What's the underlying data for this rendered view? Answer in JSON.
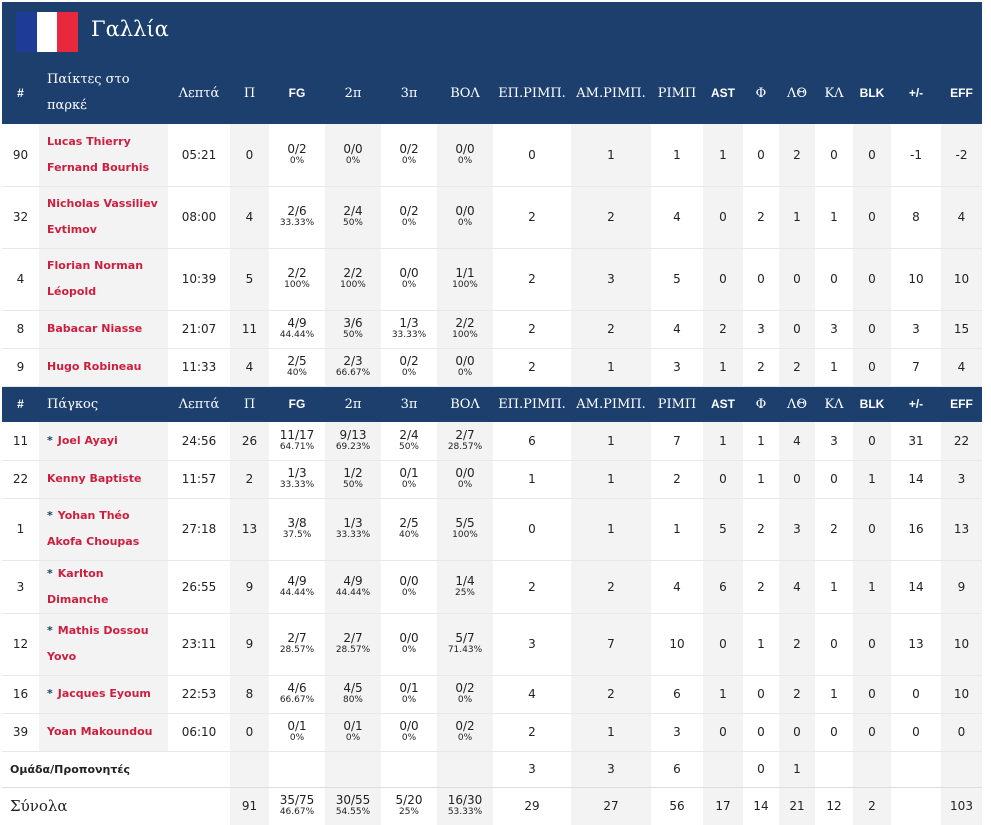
{
  "title": "Γαλλία",
  "flag_colors": [
    "#1e3c97",
    "#ffffff",
    "#e8283c"
  ],
  "starters_header": {
    "num": "#",
    "name": "Παίκτες στο παρκέ",
    "min": "Λεπτά",
    "pts": "Π",
    "fg": "FG",
    "p2": "2π",
    "p3": "3π",
    "ft": "ΒΟΛ",
    "oreb": "ΕΠ.ΡΙΜΠ.",
    "dreb": "ΑΜ.ΡΙΜΠ.",
    "reb": "ΡΙΜΠ",
    "ast": "AST",
    "fouls": "Φ",
    "to": "ΛΘ",
    "stl": "ΚΛ",
    "blk": "BLK",
    "pm": "+/-",
    "eff": "EFF"
  },
  "bench_header": {
    "num": "#",
    "name": "Πάγκος",
    "min": "Λεπτά",
    "pts": "Π",
    "fg": "FG",
    "p2": "2π",
    "p3": "3π",
    "ft": "ΒΟΛ",
    "oreb": "ΕΠ.ΡΙΜΠ.",
    "dreb": "ΑΜ.ΡΙΜΠ.",
    "reb": "ΡΙΜΠ",
    "ast": "AST",
    "fouls": "Φ",
    "to": "ΛΘ",
    "stl": "ΚΛ",
    "blk": "BLK",
    "pm": "+/-",
    "eff": "EFF"
  },
  "starters": [
    {
      "num": "90",
      "star": "",
      "name": "Lucas Thierry Fernand Bourhis",
      "min": "05:21",
      "pts": "0",
      "fg": "0/2",
      "fg_pct": "0%",
      "p2": "0/0",
      "p2_pct": "0%",
      "p3": "0/2",
      "p3_pct": "0%",
      "ft": "0/0",
      "ft_pct": "0%",
      "oreb": "0",
      "dreb": "1",
      "reb": "1",
      "ast": "1",
      "fouls": "0",
      "to": "2",
      "stl": "0",
      "blk": "0",
      "pm": "-1",
      "eff": "-2"
    },
    {
      "num": "32",
      "star": "",
      "name": "Nicholas Vassiliev Evtimov",
      "min": "08:00",
      "pts": "4",
      "fg": "2/6",
      "fg_pct": "33.33%",
      "p2": "2/4",
      "p2_pct": "50%",
      "p3": "0/2",
      "p3_pct": "0%",
      "ft": "0/0",
      "ft_pct": "0%",
      "oreb": "2",
      "dreb": "2",
      "reb": "4",
      "ast": "0",
      "fouls": "2",
      "to": "1",
      "stl": "1",
      "blk": "0",
      "pm": "8",
      "eff": "4"
    },
    {
      "num": "4",
      "star": "",
      "name": "Florian Norman Léopold",
      "min": "10:39",
      "pts": "5",
      "fg": "2/2",
      "fg_pct": "100%",
      "p2": "2/2",
      "p2_pct": "100%",
      "p3": "0/0",
      "p3_pct": "0%",
      "ft": "1/1",
      "ft_pct": "100%",
      "oreb": "2",
      "dreb": "3",
      "reb": "5",
      "ast": "0",
      "fouls": "0",
      "to": "0",
      "stl": "0",
      "blk": "0",
      "pm": "10",
      "eff": "10"
    },
    {
      "num": "8",
      "star": "",
      "name": "Babacar Niasse",
      "min": "21:07",
      "pts": "11",
      "fg": "4/9",
      "fg_pct": "44.44%",
      "p2": "3/6",
      "p2_pct": "50%",
      "p3": "1/3",
      "p3_pct": "33.33%",
      "ft": "2/2",
      "ft_pct": "100%",
      "oreb": "2",
      "dreb": "2",
      "reb": "4",
      "ast": "2",
      "fouls": "3",
      "to": "0",
      "stl": "3",
      "blk": "0",
      "pm": "3",
      "eff": "15"
    },
    {
      "num": "9",
      "star": "",
      "name": "Hugo Robineau",
      "min": "11:33",
      "pts": "4",
      "fg": "2/5",
      "fg_pct": "40%",
      "p2": "2/3",
      "p2_pct": "66.67%",
      "p3": "0/2",
      "p3_pct": "0%",
      "ft": "0/0",
      "ft_pct": "0%",
      "oreb": "2",
      "dreb": "1",
      "reb": "3",
      "ast": "1",
      "fouls": "2",
      "to": "2",
      "stl": "1",
      "blk": "0",
      "pm": "7",
      "eff": "4"
    }
  ],
  "bench": [
    {
      "num": "11",
      "star": "*",
      "name": "Joel Ayayi",
      "min": "24:56",
      "pts": "26",
      "fg": "11/17",
      "fg_pct": "64.71%",
      "p2": "9/13",
      "p2_pct": "69.23%",
      "p3": "2/4",
      "p3_pct": "50%",
      "ft": "2/7",
      "ft_pct": "28.57%",
      "oreb": "6",
      "dreb": "1",
      "reb": "7",
      "ast": "1",
      "fouls": "1",
      "to": "4",
      "stl": "3",
      "blk": "0",
      "pm": "31",
      "eff": "22"
    },
    {
      "num": "22",
      "star": "",
      "name": "Kenny Baptiste",
      "min": "11:57",
      "pts": "2",
      "fg": "1/3",
      "fg_pct": "33.33%",
      "p2": "1/2",
      "p2_pct": "50%",
      "p3": "0/1",
      "p3_pct": "0%",
      "ft": "0/0",
      "ft_pct": "0%",
      "oreb": "1",
      "dreb": "1",
      "reb": "2",
      "ast": "0",
      "fouls": "1",
      "to": "0",
      "stl": "0",
      "blk": "1",
      "pm": "14",
      "eff": "3"
    },
    {
      "num": "1",
      "star": "*",
      "name": "Yohan Théo Akofa Choupas",
      "min": "27:18",
      "pts": "13",
      "fg": "3/8",
      "fg_pct": "37.5%",
      "p2": "1/3",
      "p2_pct": "33.33%",
      "p3": "2/5",
      "p3_pct": "40%",
      "ft": "5/5",
      "ft_pct": "100%",
      "oreb": "0",
      "dreb": "1",
      "reb": "1",
      "ast": "5",
      "fouls": "2",
      "to": "3",
      "stl": "2",
      "blk": "0",
      "pm": "16",
      "eff": "13"
    },
    {
      "num": "3",
      "star": "*",
      "name": "Karlton Dimanche",
      "min": "26:55",
      "pts": "9",
      "fg": "4/9",
      "fg_pct": "44.44%",
      "p2": "4/9",
      "p2_pct": "44.44%",
      "p3": "0/0",
      "p3_pct": "0%",
      "ft": "1/4",
      "ft_pct": "25%",
      "oreb": "2",
      "dreb": "2",
      "reb": "4",
      "ast": "6",
      "fouls": "2",
      "to": "4",
      "stl": "1",
      "blk": "1",
      "pm": "14",
      "eff": "9"
    },
    {
      "num": "12",
      "star": "*",
      "name": "Mathis Dossou Yovo",
      "min": "23:11",
      "pts": "9",
      "fg": "2/7",
      "fg_pct": "28.57%",
      "p2": "2/7",
      "p2_pct": "28.57%",
      "p3": "0/0",
      "p3_pct": "0%",
      "ft": "5/7",
      "ft_pct": "71.43%",
      "oreb": "3",
      "dreb": "7",
      "reb": "10",
      "ast": "0",
      "fouls": "1",
      "to": "2",
      "stl": "0",
      "blk": "0",
      "pm": "13",
      "eff": "10"
    },
    {
      "num": "16",
      "star": "*",
      "name": "Jacques Eyoum",
      "min": "22:53",
      "pts": "8",
      "fg": "4/6",
      "fg_pct": "66.67%",
      "p2": "4/5",
      "p2_pct": "80%",
      "p3": "0/1",
      "p3_pct": "0%",
      "ft": "0/2",
      "ft_pct": "0%",
      "oreb": "4",
      "dreb": "2",
      "reb": "6",
      "ast": "1",
      "fouls": "0",
      "to": "2",
      "stl": "1",
      "blk": "0",
      "pm": "0",
      "eff": "10"
    },
    {
      "num": "39",
      "star": "",
      "name": "Yoan Makoundou",
      "min": "06:10",
      "pts": "0",
      "fg": "0/1",
      "fg_pct": "0%",
      "p2": "0/1",
      "p2_pct": "0%",
      "p3": "0/0",
      "p3_pct": "0%",
      "ft": "0/2",
      "ft_pct": "0%",
      "oreb": "2",
      "dreb": "1",
      "reb": "3",
      "ast": "0",
      "fouls": "0",
      "to": "0",
      "stl": "0",
      "blk": "0",
      "pm": "0",
      "eff": "0"
    }
  ],
  "team_row": {
    "label": "Ομάδα/Προπονητές",
    "oreb": "3",
    "dreb": "3",
    "reb": "6",
    "fouls": "0",
    "to": "1"
  },
  "totals": {
    "label": "Σύνολα",
    "pts": "91",
    "fg": "35/75",
    "fg_pct": "46.67%",
    "p2": "30/55",
    "p2_pct": "54.55%",
    "p3": "5/20",
    "p3_pct": "25%",
    "ft": "16/30",
    "ft_pct": "53.33%",
    "oreb": "29",
    "dreb": "27",
    "reb": "56",
    "ast": "17",
    "fouls": "14",
    "to": "21",
    "stl": "12",
    "blk": "2",
    "eff": "103"
  }
}
